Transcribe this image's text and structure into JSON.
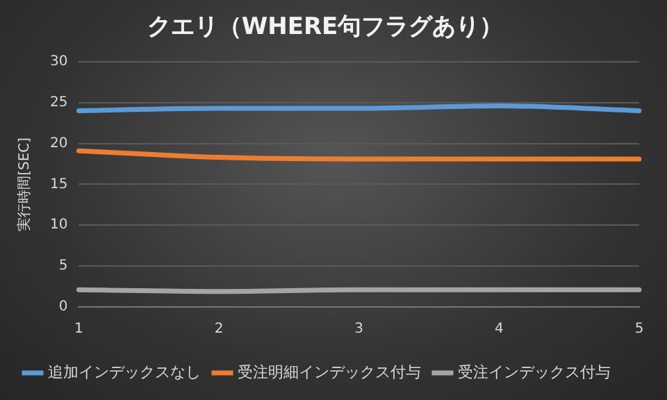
{
  "chart_data": {
    "type": "line",
    "title": "クエリ（WHERE句フラグあり）",
    "ylabel": "実行時間[SEC]",
    "categories": [
      "1",
      "2",
      "3",
      "4",
      "5"
    ],
    "series": [
      {
        "name": "追加インデックスなし",
        "color": "#5b9bd5",
        "values": [
          24,
          24.3,
          24.3,
          24.6,
          24
        ]
      },
      {
        "name": "受注明細インデックス付与",
        "color": "#ed7d31",
        "values": [
          19.1,
          18.3,
          18.1,
          18.1,
          18.1
        ]
      },
      {
        "name": "受注インデックス付与",
        "color": "#a5a5a5",
        "values": [
          2.1,
          1.9,
          2.1,
          2.1,
          2.1
        ]
      }
    ],
    "ylim": [
      0,
      30
    ],
    "yticks": [
      0,
      5,
      10,
      15,
      20,
      25,
      30
    ],
    "grid": "y",
    "legend": "bottom",
    "marker": "none",
    "line_style": "solid"
  }
}
